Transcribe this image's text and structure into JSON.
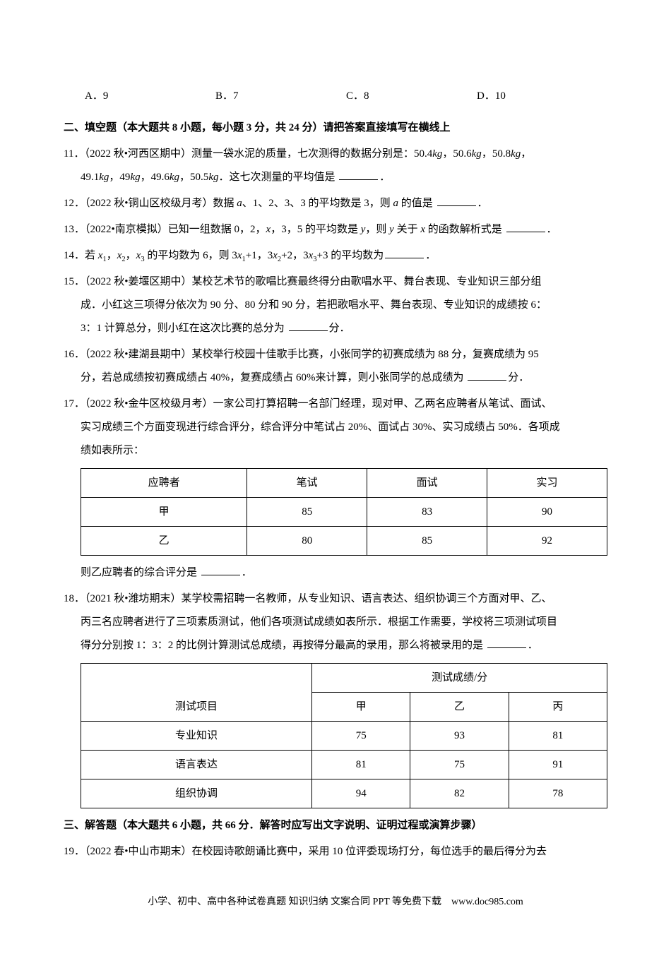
{
  "choices_row": {
    "a": "A．9",
    "b": "B．7",
    "c": "C．8",
    "d": "D．10"
  },
  "section2": {
    "title": "二、填空题（本大题共 8 小题，每小题 3 分，共 24 分）请把答案直接填写在横线上"
  },
  "q11": {
    "line1_pre": "11．（2022 秋•河西区期中）测量一袋水泥的质量，七次测得的数据分别是：50.4",
    "line1_post": "，50.6",
    "line1_post2": "，50.8",
    "line1_post3": "，",
    "line2_pre": "49.1",
    "line2_mid1": "，49",
    "line2_mid2": "，49.6",
    "line2_mid3": "，50.5",
    "line2_post": "．这七次测量的平均值是",
    "unit": "kg",
    "period": "．"
  },
  "q12": {
    "pre": "12．（2022 秋•铜山区校级月考）数据 ",
    "mid": "、1、2、3、3 的平均数是 3，则 ",
    "post": " 的值是",
    "period": "．",
    "var": "a"
  },
  "q13": {
    "pre": "13．（2022•南京模拟）已知一组数据 0，2，",
    "mid1": "，3，5 的平均数是 ",
    "mid2": "，则 ",
    "mid3": " 关于 ",
    "post": " 的函数解析式是",
    "period": "．",
    "x": "x",
    "y": "y"
  },
  "q14": {
    "pre": "14．若 ",
    "x1": "x",
    "sub1": "1",
    "c1": "，",
    "x2": "x",
    "sub2": "2",
    "c2": "，",
    "x3": "x",
    "sub3": "3",
    "mid": " 的平均数为 6，则 3",
    "t1": "+1，3",
    "t2": "+2，3",
    "t3": "+3 的平均数为",
    "period": "．"
  },
  "q15": {
    "line1": "15．（2022 秋•姜堰区期中）某校艺术节的歌唱比赛最终得分由歌唱水平、舞台表现、专业知识三部分组",
    "line2": "成．小红这三项得分依次为 90 分、80 分和 90 分，若把歌唱水平、舞台表现、专业知识的成绩按 6：",
    "line3_pre": "3：1 计算总分，则小红在这次比赛的总分为",
    "line3_post": "分．"
  },
  "q16": {
    "line1": "16．（2022 秋•建湖县期中）某校举行校园十佳歌手比赛，小张同学的初赛成绩为 88 分，复赛成绩为 95",
    "line2_pre": "分，若总成绩按初赛成绩占 40%，复赛成绩占 60%来计算，则小张同学的总成绩为",
    "line2_post": "分．"
  },
  "q17": {
    "line1": "17．（2022 秋•金牛区校级月考）一家公司打算招聘一名部门经理，现对甲、乙两名应聘者从笔试、面试、",
    "line2": "实习成绩三个方面变现进行综合评分，综合评分中笔试占 20%、面试占 30%、实习成绩占 50%．各项成",
    "line3": "绩如表所示：",
    "after_pre": "则乙应聘者的综合评分是",
    "after_post": "．",
    "table": {
      "headers": [
        "应聘者",
        "笔试",
        "面试",
        "实习"
      ],
      "rows": [
        [
          "甲",
          "85",
          "83",
          "90"
        ],
        [
          "乙",
          "80",
          "85",
          "92"
        ]
      ]
    }
  },
  "q18": {
    "line1": "18．（2021 秋•潍坊期末）某学校需招聘一名教师，从专业知识、语言表达、组织协调三个方面对甲、乙、",
    "line2": "丙三名应聘者进行了三项素质测试，他们各项测试成绩如表所示．根据工作需要，学校将三项测试项目",
    "line3_pre": "得分分别按 1：3：2 的比例计算测试总成绩，再按得分最高的录用，那么将被录用的是",
    "line3_post": "．",
    "table": {
      "top_header": "测试成绩/分",
      "col1_header": "测试项目",
      "cols": [
        "甲",
        "乙",
        "丙"
      ],
      "rows": [
        [
          "专业知识",
          "75",
          "93",
          "81"
        ],
        [
          "语言表达",
          "81",
          "75",
          "91"
        ],
        [
          "组织协调",
          "94",
          "82",
          "78"
        ]
      ]
    }
  },
  "section3": {
    "title": "三、解答题（本大题共 6 小题，共 66 分．解答时应写出文字说明、证明过程或演算步骤）"
  },
  "q19": {
    "line1": "19．（2022 春•中山市期末）在校园诗歌朗诵比赛中，采用 10 位评委现场打分，每位选手的最后得分为去"
  },
  "footer": "小学、初中、高中各种试卷真题  知识归纳  文案合同  PPT 等免费下载　www.doc985.com"
}
